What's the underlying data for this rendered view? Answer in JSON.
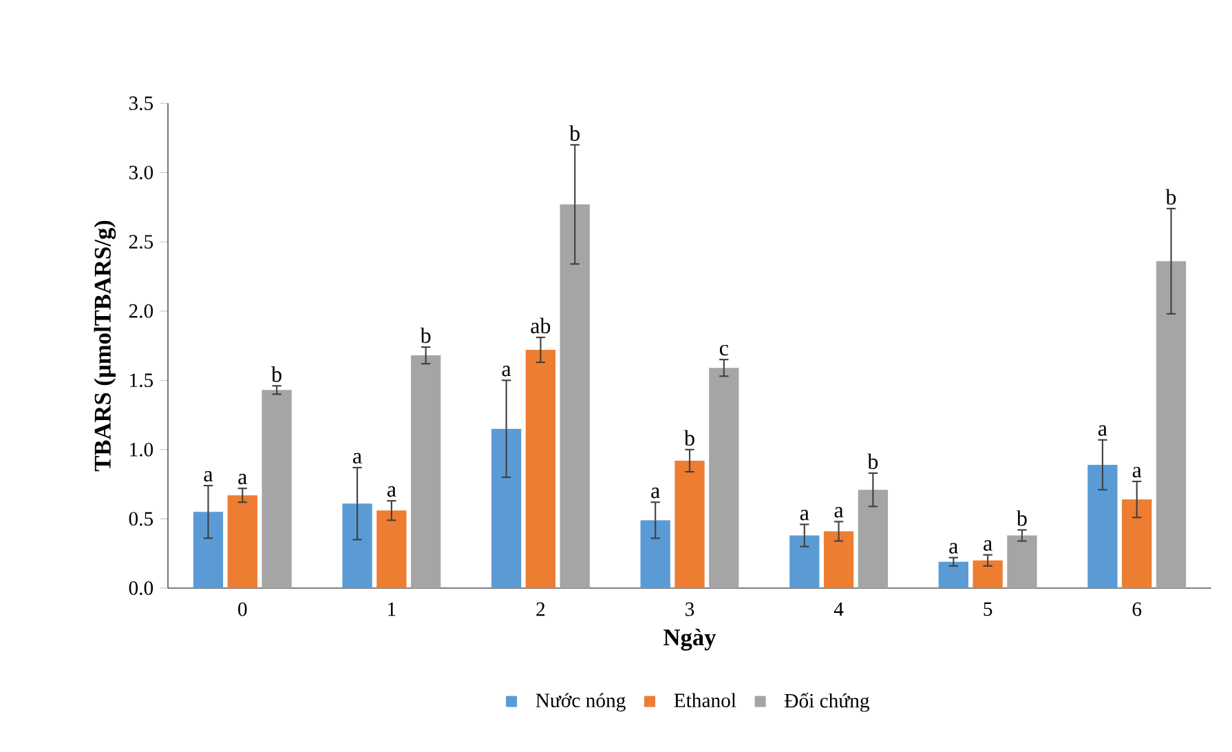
{
  "chart_data": {
    "type": "bar",
    "xlabel": "Ngày",
    "ylabel": "TBARS (µmolTBARS/g)",
    "categories": [
      "0",
      "1",
      "2",
      "3",
      "4",
      "5",
      "6"
    ],
    "ylim": [
      0,
      3.5
    ],
    "yticks": [
      {
        "value": 0,
        "label": "0.0"
      },
      0.5,
      {
        "value": 1,
        "label": "1.0"
      },
      1.5,
      {
        "value": 2,
        "label": "2.0"
      },
      2.5,
      {
        "value": 3,
        "label": "3.0"
      },
      3.5
    ],
    "grid": false,
    "legend": "bottom",
    "series": [
      {
        "name": "Nước nóng",
        "color": "#5b9bd5",
        "values": [
          0.55,
          0.61,
          1.15,
          0.49,
          0.38,
          0.19,
          0.89
        ],
        "errors": [
          0.19,
          0.26,
          0.35,
          0.13,
          0.08,
          0.03,
          0.18
        ],
        "value_labels": [
          "a",
          "a",
          "a",
          "a",
          "a",
          "a",
          "a"
        ]
      },
      {
        "name": "Ethanol",
        "color": "#ed7d31",
        "values": [
          0.67,
          0.56,
          1.72,
          0.92,
          0.41,
          0.2,
          0.64
        ],
        "errors": [
          0.05,
          0.07,
          0.09,
          0.08,
          0.07,
          0.04,
          0.13
        ],
        "value_labels": [
          "a",
          "a",
          "ab",
          "b",
          "a",
          "a",
          "a"
        ]
      },
      {
        "name": "Đối chứng",
        "color": "#a5a5a5",
        "values": [
          1.43,
          1.68,
          2.77,
          1.59,
          0.71,
          0.38,
          2.36
        ],
        "errors": [
          0.03,
          0.06,
          0.43,
          0.06,
          0.12,
          0.04,
          0.38
        ],
        "value_labels": [
          "b",
          "b",
          "b",
          "c",
          "b",
          "b",
          "b"
        ]
      }
    ]
  }
}
